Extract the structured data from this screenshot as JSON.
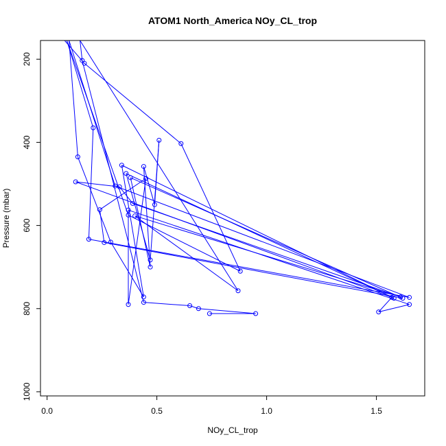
{
  "chart_data": {
    "type": "line",
    "title": "ATOM1 North_America NOy_CL_trop",
    "xlabel": "NOy_CL_trop",
    "ylabel": "Pressure (mbar)",
    "xlim": [
      -0.03,
      1.72
    ],
    "ylim": [
      1010,
      155
    ],
    "x_ticks": [
      0.0,
      0.5,
      1.0,
      1.5
    ],
    "x_tick_labels": [
      "0.0",
      "0.5",
      "1.0",
      "1.5"
    ],
    "y_ticks": [
      200,
      400,
      600,
      800,
      1000
    ],
    "y_tick_labels": [
      "200",
      "400",
      "600",
      "800",
      "1000"
    ],
    "y_scale": "linear, inverted",
    "grid": false,
    "series_color": "#0000ff",
    "marker": "open-circle",
    "series": [
      {
        "points": [
          [
            0.08,
            155
          ],
          [
            0.17,
            210
          ],
          [
            0.61,
            403
          ],
          [
            0.88,
            710
          ],
          [
            0.37,
            575
          ],
          [
            0.09,
            155
          ],
          [
            0.21,
            365
          ],
          [
            0.19,
            633
          ],
          [
            1.65,
            773
          ],
          [
            0.31,
            505
          ],
          [
            0.1,
            155
          ],
          [
            0.14,
            435
          ],
          [
            0.29,
            640
          ],
          [
            0.44,
            772
          ],
          [
            0.34,
            455
          ],
          [
            1.58,
            775
          ],
          [
            0.36,
            475
          ],
          [
            0.47,
            683
          ],
          [
            0.51,
            395
          ],
          [
            0.49,
            550
          ],
          [
            0.44,
            458
          ],
          [
            0.47,
            700
          ],
          [
            0.38,
            485
          ],
          [
            1.62,
            775
          ],
          [
            0.26,
            641
          ],
          [
            0.24,
            562
          ],
          [
            0.45,
            487
          ],
          [
            0.37,
            790
          ],
          [
            0.37,
            563
          ],
          [
            1.65,
            790
          ],
          [
            1.51,
            808
          ],
          [
            1.57,
            773
          ],
          [
            0.13,
            495
          ],
          [
            0.33,
            507
          ],
          [
            0.39,
            547
          ],
          [
            1.61,
            772
          ],
          [
            0.4,
            577
          ],
          [
            0.87,
            757
          ],
          [
            0.15,
            155
          ],
          [
            0.16,
            203
          ],
          [
            0.44,
            785
          ],
          [
            0.65,
            793
          ],
          [
            0.69,
            800
          ],
          [
            0.95,
            812
          ],
          [
            0.74,
            812
          ]
        ]
      }
    ]
  }
}
